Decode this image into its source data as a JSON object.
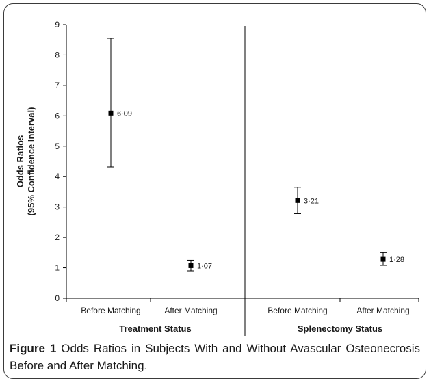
{
  "caption": {
    "label": "Figure 1",
    "text": "Odds Ratios in Subjects With and Without Avascular Osteonecrosis Before and After Matching",
    "end": "."
  },
  "chart_data": {
    "type": "scatter",
    "subtype": "error-bar",
    "ylabel_line1": "Odds Ratios",
    "ylabel_line2": "(95% Confidence Interval)",
    "ylim": [
      0,
      9
    ],
    "yticks": [
      "0",
      "1",
      "2",
      "3",
      "4",
      "5",
      "6",
      "7",
      "8",
      "9"
    ],
    "grid": false,
    "groups": [
      {
        "label": "Treatment Status",
        "categories": [
          "Before Matching",
          "After Matching"
        ]
      },
      {
        "label": "Splenectomy Status",
        "categories": [
          "Before Matching",
          "After Matching"
        ]
      }
    ],
    "points": [
      {
        "group": 0,
        "category": "Before Matching",
        "value": 6.09,
        "lower": 4.32,
        "upper": 8.55,
        "label": "6·09"
      },
      {
        "group": 0,
        "category": "After Matching",
        "value": 1.07,
        "lower": 0.9,
        "upper": 1.25,
        "label": "1·07"
      },
      {
        "group": 1,
        "category": "Before Matching",
        "value": 3.21,
        "lower": 2.78,
        "upper": 3.65,
        "label": "3·21"
      },
      {
        "group": 1,
        "category": "After Matching",
        "value": 1.28,
        "lower": 1.08,
        "upper": 1.5,
        "label": "1·28"
      }
    ],
    "colors": {
      "marker": "#000000",
      "axis": "#000000",
      "text": "#1a1a1a"
    }
  }
}
